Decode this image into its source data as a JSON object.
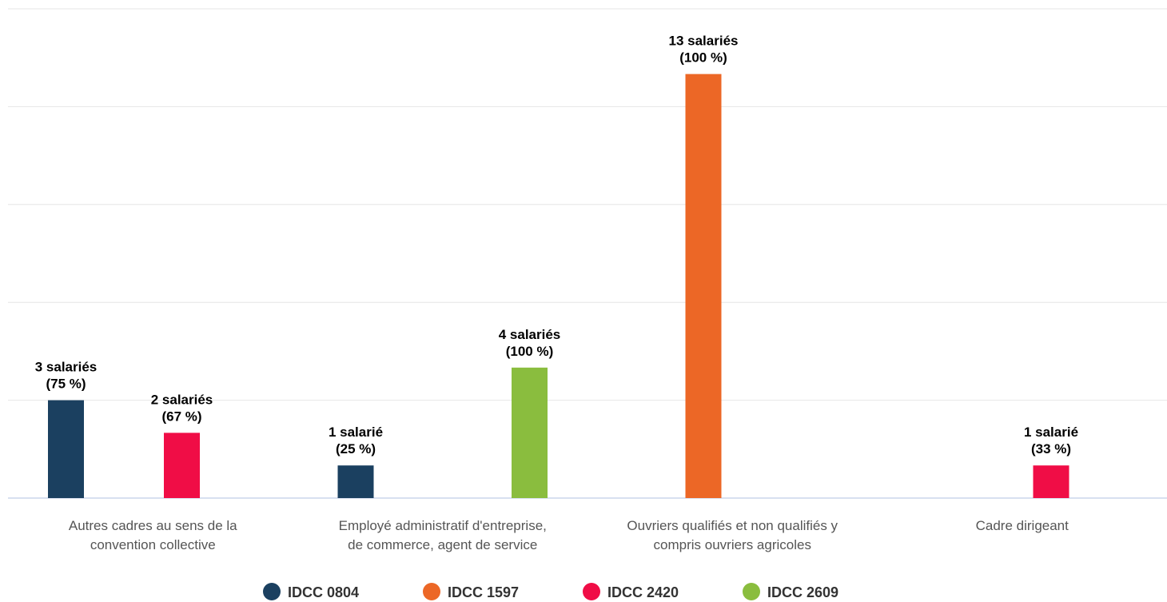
{
  "chart_data": {
    "type": "bar",
    "title": "",
    "xlabel": "",
    "ylabel": "",
    "ylim": [
      0,
      15
    ],
    "grid": true,
    "legend_position": "bottom-center",
    "categories": [
      [
        "Autres cadres au sens de la",
        "convention collective"
      ],
      [
        "Employé administratif d'entreprise,",
        "de commerce, agent de service"
      ],
      [
        "Ouvriers qualifiés et non qualifiés y",
        "compris ouvriers agricoles"
      ],
      [
        "Cadre dirigeant"
      ]
    ],
    "series": [
      {
        "name": "IDCC 0804",
        "color": "#1b4060",
        "values": [
          3,
          1,
          null,
          null
        ],
        "labels": [
          [
            "3 salariés",
            "(75 %)"
          ],
          [
            "1 salarié",
            "(25 %)"
          ],
          null,
          null
        ]
      },
      {
        "name": "IDCC 1597",
        "color": "#ec6726",
        "values": [
          null,
          null,
          13,
          null
        ],
        "labels": [
          null,
          null,
          [
            "13 salariés",
            "(100 %)"
          ],
          null
        ]
      },
      {
        "name": "IDCC 2420",
        "color": "#f00d46",
        "values": [
          2,
          null,
          null,
          1
        ],
        "labels": [
          [
            "2 salariés",
            "(67 %)"
          ],
          null,
          null,
          [
            "1 salarié",
            "(33 %)"
          ]
        ]
      },
      {
        "name": "IDCC 2609",
        "color": "#8abd3e",
        "values": [
          null,
          4,
          null,
          null
        ],
        "labels": [
          null,
          [
            "4 salariés",
            "(100 %)"
          ],
          null,
          null
        ]
      }
    ]
  }
}
